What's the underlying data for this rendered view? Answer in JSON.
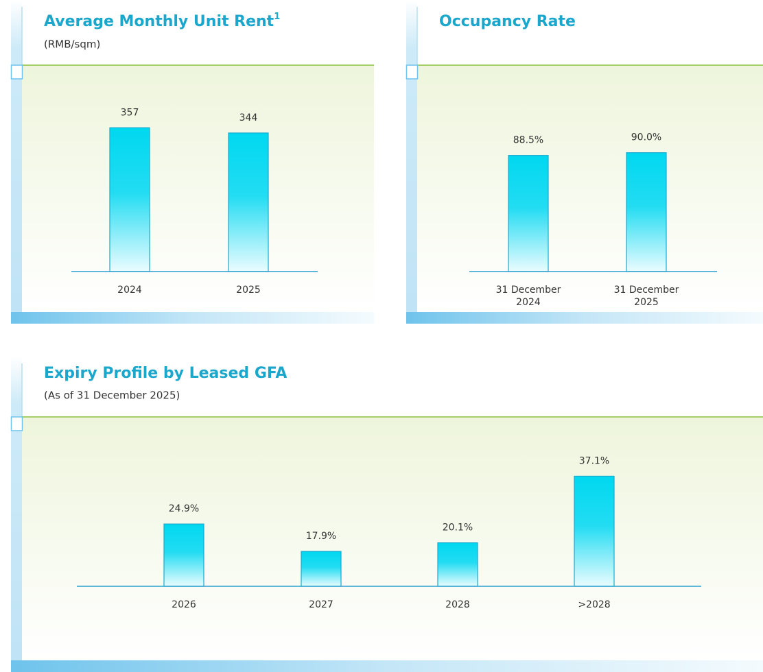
{
  "chart_data": [
    {
      "type": "bar",
      "title": "Average Monthly Unit Rent",
      "title_superscript": "1",
      "subtitle": "(RMB/sqm)",
      "categories": [
        "2024",
        "2025"
      ],
      "values": [
        357,
        344
      ],
      "ylim": [
        0,
        400
      ],
      "color": "#00d8f0"
    },
    {
      "type": "bar",
      "title": "Occupancy Rate",
      "categories": [
        "31 December\n2024",
        "31 December\n2025"
      ],
      "values": [
        88.5,
        90.0
      ],
      "value_labels": [
        "88.5%",
        "90.0%"
      ],
      "ylim": [
        25,
        100
      ],
      "color": "#00d8f0"
    },
    {
      "type": "bar",
      "title": "Expiry Profile by Leased GFA",
      "subtitle": "(As of 31 December 2025)",
      "categories": [
        "2026",
        "2027",
        "2028",
        ">2028"
      ],
      "values": [
        24.9,
        17.9,
        20.1,
        37.1
      ],
      "value_labels": [
        "24.9%",
        "17.9%",
        "20.1%",
        "37.1%"
      ],
      "ylim": [
        9,
        44
      ],
      "color": "#00d8f0"
    }
  ]
}
